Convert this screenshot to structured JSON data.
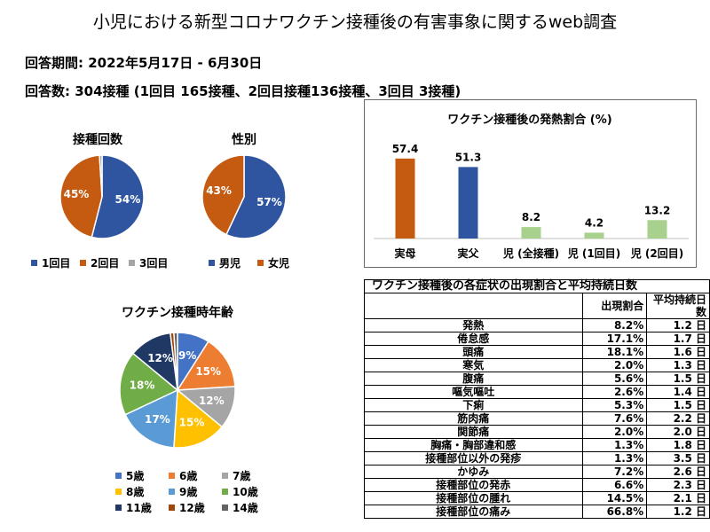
{
  "title": "小児における新型コロナワクチン接種後の有害事象に関するweb調査",
  "survey_period": "回答期間:  2022年5月17日 - 6月30日",
  "response_count": "回答数:  304接種 (1回目 165接種、2回目接種136接種、3回目 3接種)",
  "colors": {
    "blue": "#2f55a0",
    "orange": "#c55a11",
    "gray": "#a5a5a5",
    "light_orange": "#ed7d31",
    "yellow": "#ffc000",
    "light_blue": "#5b9bd5",
    "green": "#70ad47",
    "navy": "#1f3864",
    "brown": "#9e480e",
    "dark_gray": "#636363",
    "light_green": "#a9d18e"
  },
  "chart_data": [
    {
      "type": "pie",
      "title": "接種回数",
      "slices": [
        {
          "label": "1回目",
          "value": 54,
          "data_label": "54%",
          "color": "#2f55a0"
        },
        {
          "label": "2回目",
          "value": 45,
          "data_label": "45%",
          "color": "#c55a11"
        },
        {
          "label": "3回目",
          "value": 1,
          "data_label": "1%",
          "color": "#a5a5a5"
        }
      ]
    },
    {
      "type": "pie",
      "title": "性別",
      "slices": [
        {
          "label": "男児",
          "value": 57,
          "data_label": "57%",
          "color": "#2f55a0"
        },
        {
          "label": "女児",
          "value": 43,
          "data_label": "43%",
          "color": "#c55a11"
        }
      ]
    },
    {
      "type": "pie",
      "title": "ワクチン接種時年齢",
      "slices": [
        {
          "label": "5歳",
          "value": 9,
          "data_label": "9%",
          "color": "#4472c4"
        },
        {
          "label": "6歳",
          "value": 15,
          "data_label": "15%",
          "color": "#ed7d31"
        },
        {
          "label": "7歳",
          "value": 12,
          "data_label": "12%",
          "color": "#a5a5a5"
        },
        {
          "label": "8歳",
          "value": 15,
          "data_label": "15%",
          "color": "#ffc000"
        },
        {
          "label": "9歳",
          "value": 17,
          "data_label": "17%",
          "color": "#5b9bd5"
        },
        {
          "label": "10歳",
          "value": 18,
          "data_label": "18%",
          "color": "#70ad47"
        },
        {
          "label": "11歳",
          "value": 12,
          "data_label": "12%",
          "color": "#1f3864"
        },
        {
          "label": "12歳",
          "value": 1,
          "data_label": "1%",
          "color": "#9e480e"
        },
        {
          "label": "14歳",
          "value": 1,
          "data_label": "1%",
          "color": "#636363"
        }
      ]
    },
    {
      "type": "bar",
      "title": "ワクチン接種後の発熱割合 (%)",
      "categories": [
        "実母",
        "実父",
        "児 (全接種)",
        "児 (1回目)",
        "児 (2回目)"
      ],
      "values": [
        57.4,
        51.3,
        8.2,
        4.2,
        13.2
      ],
      "value_labels": [
        "57.4",
        "51.3",
        "8.2",
        "4.2",
        "13.2"
      ],
      "colors": [
        "#c55a11",
        "#2f55a0",
        "#a9d18e",
        "#a9d18e",
        "#a9d18e"
      ],
      "ylim": [
        0,
        70
      ]
    },
    {
      "type": "table",
      "title": "ワクチン接種後の各症状の出現割合と平均持続日数",
      "columns": [
        "",
        "出現割合",
        "平均持続日数"
      ],
      "rows": [
        {
          "name": "発熱",
          "rate": "8.2%",
          "days": "1.2 日"
        },
        {
          "name": "倦怠感",
          "rate": "17.1%",
          "days": "1.7 日"
        },
        {
          "name": "頭痛",
          "rate": "18.1%",
          "days": "1.6 日"
        },
        {
          "name": "寒気",
          "rate": "2.0%",
          "days": "1.3 日"
        },
        {
          "name": "腹痛",
          "rate": "5.6%",
          "days": "1.5 日"
        },
        {
          "name": "嘔気嘔吐",
          "rate": "2.6%",
          "days": "1.4 日"
        },
        {
          "name": "下痢",
          "rate": "5.3%",
          "days": "1.5 日"
        },
        {
          "name": "筋肉痛",
          "rate": "7.6%",
          "days": "2.2 日"
        },
        {
          "name": "関節痛",
          "rate": "2.0%",
          "days": "2.0 日"
        },
        {
          "name": "胸痛・胸部違和感",
          "rate": "1.3%",
          "days": "1.8 日"
        },
        {
          "name": "接種部位以外の発疹",
          "rate": "1.3%",
          "days": "3.5 日"
        },
        {
          "name": "かゆみ",
          "rate": "7.2%",
          "days": "2.6 日"
        },
        {
          "name": "接種部位の発赤",
          "rate": "6.6%",
          "days": "2.3 日"
        },
        {
          "name": "接種部位の腫れ",
          "rate": "14.5%",
          "days": "2.1 日"
        },
        {
          "name": "接種部位の痛み",
          "rate": "66.8%",
          "days": "1.2 日"
        }
      ]
    }
  ]
}
